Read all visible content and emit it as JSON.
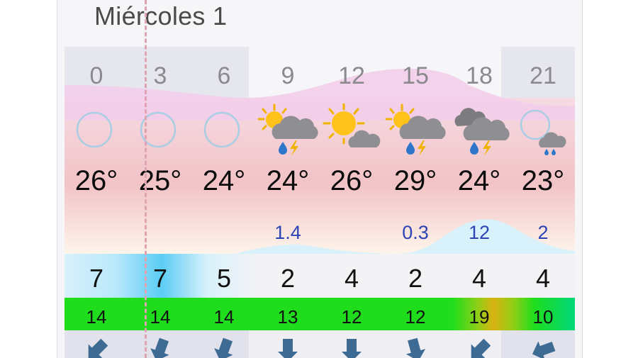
{
  "day": {
    "title": "Miércoles 1"
  },
  "columns": [
    {
      "hour": "0",
      "icon": "clear-night-icon",
      "temp": "26°",
      "rain": "",
      "wind": "7",
      "gust": "14",
      "wind_dir_deg": 225,
      "gust_color": "#1fdd1c",
      "wind_color": "#cdeef9"
    },
    {
      "hour": "3",
      "icon": "clear-night-icon",
      "temp": "25°",
      "rain": "",
      "wind": "7",
      "gust": "14",
      "wind_dir_deg": 200,
      "gust_color": "#1fdd1c",
      "wind_color": "#7fd4f5"
    },
    {
      "hour": "6",
      "icon": "clear-night-icon",
      "temp": "24°",
      "rain": "",
      "wind": "5",
      "gust": "14",
      "wind_dir_deg": 200,
      "gust_color": "#1fdd1c",
      "wind_color": "#e4f4fb"
    },
    {
      "hour": "9",
      "icon": "sun-cloud-rain-thunder-icon",
      "temp": "24°",
      "rain": "1.4",
      "wind": "2",
      "gust": "13",
      "wind_dir_deg": 180,
      "gust_color": "#1fdd1c",
      "wind_color": "#f4f4f6"
    },
    {
      "hour": "12",
      "icon": "sun-cloud-icon",
      "temp": "26°",
      "rain": "",
      "wind": "4",
      "gust": "12",
      "wind_dir_deg": 180,
      "gust_color": "#1fdd1c",
      "wind_color": "#f4f4f6"
    },
    {
      "hour": "15",
      "icon": "sun-cloud-rain-thunder-icon",
      "temp": "29°",
      "rain": "0.3",
      "wind": "2",
      "gust": "12",
      "wind_dir_deg": 165,
      "gust_color": "#1fdd1c",
      "wind_color": "#f4f4f6"
    },
    {
      "hour": "18",
      "icon": "cloud-rain-thunder-icon",
      "temp": "24°",
      "rain": "12",
      "wind": "4",
      "gust": "19",
      "wind_dir_deg": 225,
      "gust_color": "#d9b210",
      "wind_color": "#f4f4f6"
    },
    {
      "hour": "21",
      "icon": "clear-night-cloud-rain-icon",
      "temp": "23°",
      "rain": "2",
      "wind": "4",
      "gust": "10",
      "wind_dir_deg": 250,
      "gust_color": "#1fdd1c",
      "wind_color": "#f4f4f6"
    }
  ],
  "colors": {
    "panel_bg": "#f6f6f8",
    "night_shade": "#e6e6ee",
    "precip_fill": "#d8f1fb",
    "cloud_fill": "#f2cdea",
    "rain_text": "#2d44b7",
    "gust_green": "#1fdd1c",
    "gust_yellow": "#d9b210",
    "arrow": "#3d6b94"
  }
}
